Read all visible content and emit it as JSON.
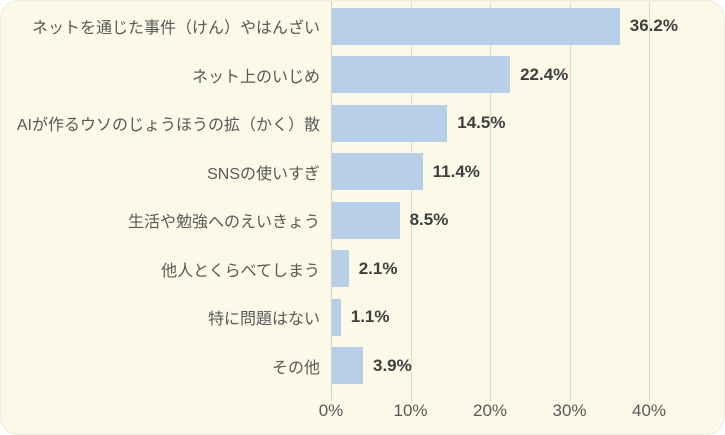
{
  "chart_data": {
    "type": "bar",
    "orientation": "horizontal",
    "title": "",
    "categories": [
      "ネットを通じた事件（けん）やはんざい",
      "ネット上のいじめ",
      "AIが作るウソのじょうほうの拡（かく）散",
      "SNSの使いすぎ",
      "生活や勉強へのえいきょう",
      "他人とくらべてしまう",
      "特に問題はない",
      "その他"
    ],
    "values": [
      36.2,
      22.4,
      14.5,
      11.4,
      8.5,
      2.1,
      1.1,
      3.9
    ],
    "data_labels": [
      "36.2%",
      "22.4%",
      "14.5%",
      "11.4%",
      "8.5%",
      "2.1%",
      "1.1%",
      "3.9%"
    ],
    "xlabel": "",
    "ylabel": "",
    "xlim": [
      0,
      40
    ],
    "x_axis": {
      "tick_labels": [
        "0%",
        "10%",
        "20%",
        "30%",
        "40%"
      ],
      "tick_values": [
        0,
        10,
        20,
        30,
        40
      ]
    },
    "grid": true,
    "legend": false,
    "colors": {
      "bar": "#b9cfe8",
      "background": "#fbf9e8",
      "gridline": "#d9d9d0",
      "axis_line": "#d2d2ca",
      "category_text": "#595959",
      "value_text": "#3f3f3f",
      "tick_text": "#595959"
    }
  }
}
